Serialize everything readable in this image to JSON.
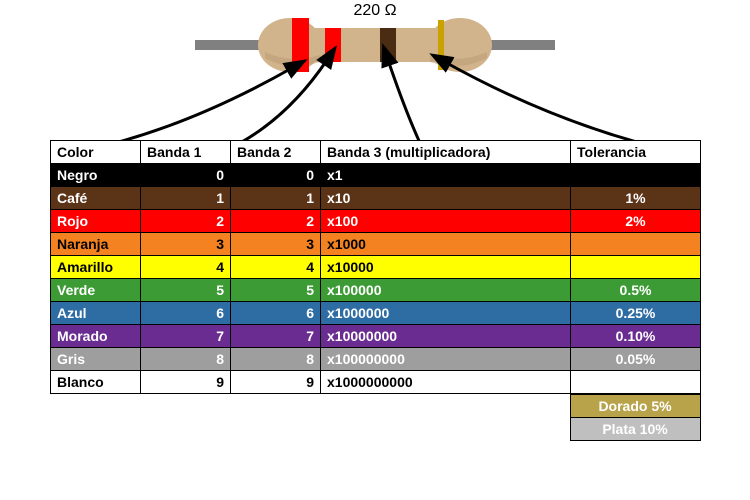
{
  "resistor": {
    "value_label": "220 Ω",
    "body_color": "#d2b48c",
    "body_shadow": "#b89a72",
    "lead_color": "#808080",
    "bands": [
      {
        "name": "band1",
        "color": "#ff0000"
      },
      {
        "name": "band2",
        "color": "#ff0000"
      },
      {
        "name": "band3",
        "color": "#4a2c12"
      },
      {
        "name": "band4",
        "color": "#c9a200"
      }
    ]
  },
  "table": {
    "headers": {
      "color": "Color",
      "b1": "Banda 1",
      "b2": "Banda 2",
      "b3": "Banda 3 (multiplicadora)",
      "tol": "Tolerancia"
    },
    "rows": [
      {
        "name": "Negro",
        "b1": "0",
        "b2": "0",
        "mult": "x1",
        "tol": "",
        "bg": "#000000",
        "fg": "#ffffff"
      },
      {
        "name": "Café",
        "b1": "1",
        "b2": "1",
        "mult": "x10",
        "tol": "1%",
        "bg": "#5b3317",
        "fg": "#ffffff"
      },
      {
        "name": "Rojo",
        "b1": "2",
        "b2": "2",
        "mult": "x100",
        "tol": "2%",
        "bg": "#ff0000",
        "fg": "#ffffff"
      },
      {
        "name": "Naranja",
        "b1": "3",
        "b2": "3",
        "mult": "x1000",
        "tol": "",
        "bg": "#f58220",
        "fg": "#000000"
      },
      {
        "name": "Amarillo",
        "b1": "4",
        "b2": "4",
        "mult": "x10000",
        "tol": "",
        "bg": "#ffff00",
        "fg": "#000000"
      },
      {
        "name": "Verde",
        "b1": "5",
        "b2": "5",
        "mult": "x100000",
        "tol": "0.5%",
        "bg": "#3d9b35",
        "fg": "#ffffff"
      },
      {
        "name": "Azul",
        "b1": "6",
        "b2": "6",
        "mult": "x1000000",
        "tol": "0.25%",
        "bg": "#2e6ca4",
        "fg": "#ffffff"
      },
      {
        "name": "Morado",
        "b1": "7",
        "b2": "7",
        "mult": "x10000000",
        "tol": "0.10%",
        "bg": "#6a2c91",
        "fg": "#ffffff"
      },
      {
        "name": "Gris",
        "b1": "8",
        "b2": "8",
        "mult": "x100000000",
        "tol": "0.05%",
        "bg": "#9e9e9e",
        "fg": "#ffffff"
      },
      {
        "name": "Blanco",
        "b1": "9",
        "b2": "9",
        "mult": "x1000000000",
        "tol": "",
        "bg": "#ffffff",
        "fg": "#000000"
      }
    ],
    "extras": [
      {
        "label": "Dorado 5%",
        "bg": "#b8a24a",
        "fg": "#ffffff"
      },
      {
        "label": "Plata 10%",
        "bg": "#bfbfbf",
        "fg": "#ffffff"
      }
    ]
  }
}
